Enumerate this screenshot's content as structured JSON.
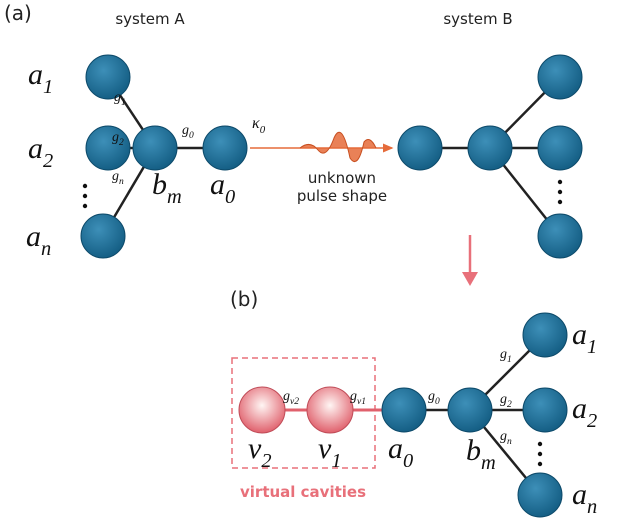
{
  "panel_a": {
    "label": "(a)",
    "system_a_title": "system A",
    "system_b_title": "system B",
    "node_labels": [
      {
        "base": "a",
        "sub": "1"
      },
      {
        "base": "a",
        "sub": "2"
      },
      {
        "base": "a",
        "sub": "n"
      },
      {
        "base": "b",
        "sub": "m"
      },
      {
        "base": "a",
        "sub": "0"
      }
    ],
    "couplings": [
      {
        "base": "g",
        "sub": "1"
      },
      {
        "base": "g",
        "sub": "2"
      },
      {
        "base": "g",
        "sub": "n"
      },
      {
        "base": "g",
        "sub": "0"
      }
    ],
    "output_rate": {
      "base": "κ",
      "sub": "0"
    },
    "pulse_caption": [
      "unknown",
      "pulse shape"
    ]
  },
  "panel_b": {
    "label": "(b)",
    "node_labels": [
      {
        "base": "v",
        "sub": "2"
      },
      {
        "base": "v",
        "sub": "1"
      },
      {
        "base": "a",
        "sub": "0"
      },
      {
        "base": "b",
        "sub": "m"
      },
      {
        "base": "a",
        "sub": "1"
      },
      {
        "base": "a",
        "sub": "2"
      },
      {
        "base": "a",
        "sub": "n"
      }
    ],
    "couplings": [
      {
        "base": "g",
        "sub": "v2"
      },
      {
        "base": "g",
        "sub": "v1"
      },
      {
        "base": "g",
        "sub": "0"
      },
      {
        "base": "g",
        "sub": "1"
      },
      {
        "base": "g",
        "sub": "2"
      },
      {
        "base": "g",
        "sub": "n"
      }
    ],
    "virtual_label": "virtual cavities"
  }
}
